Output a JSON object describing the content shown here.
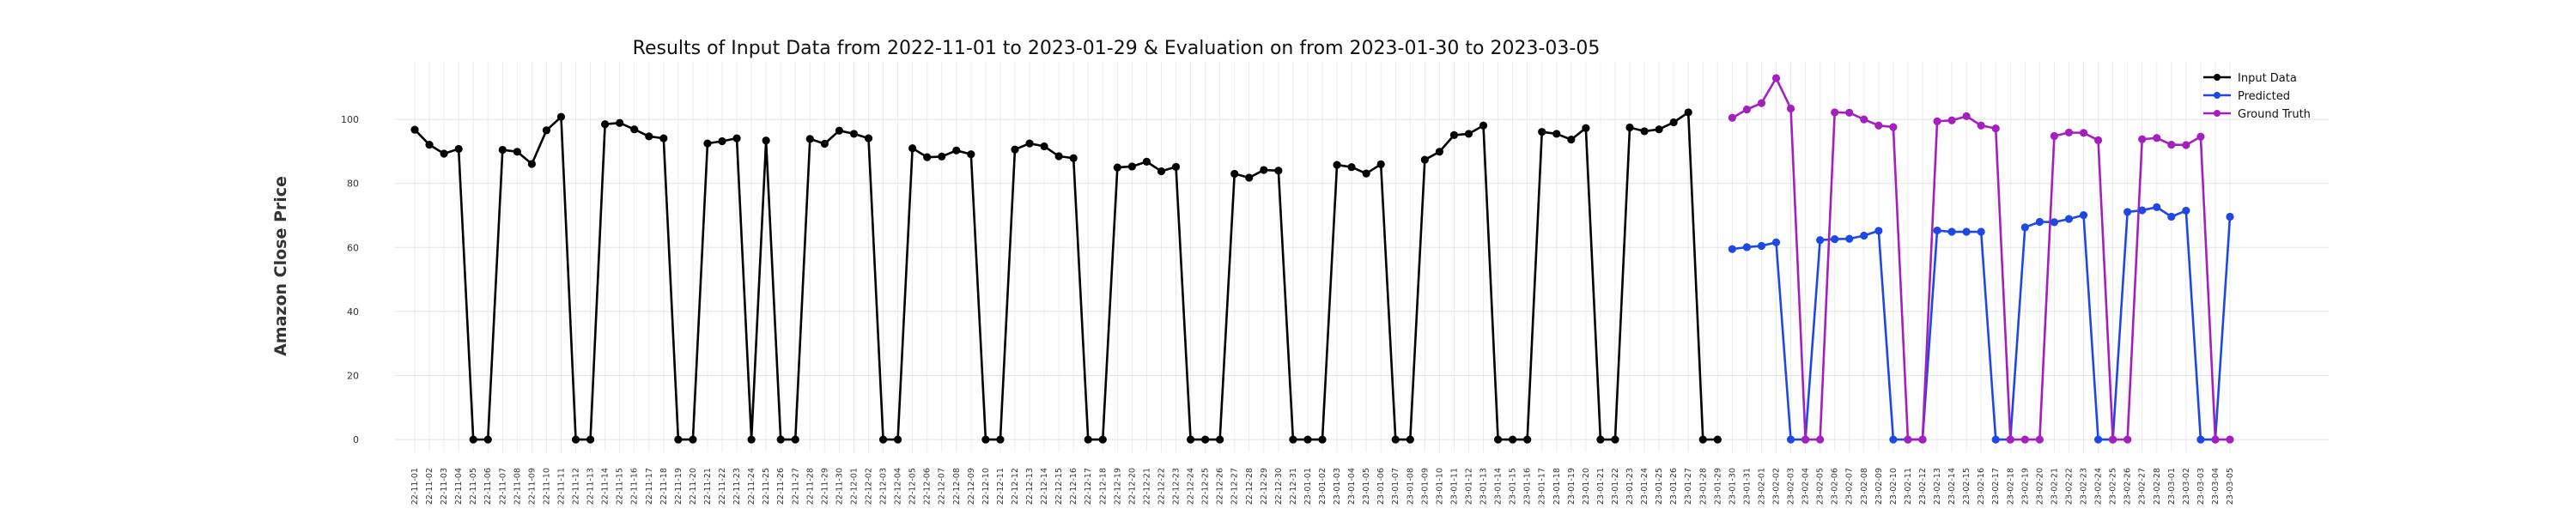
{
  "chart_data": {
    "type": "line",
    "title": "Results of Input Data from 2022-11-01 to 2023-01-29 & Evaluation on from 2023-01-30 to 2023-03-05",
    "xlabel": "",
    "ylabel": "Amazon Close Price",
    "ylim": [
      -4,
      118
    ],
    "yticks": [
      0,
      20,
      40,
      60,
      80,
      100
    ],
    "grid": true,
    "legend_position": "top-right",
    "x_input": [
      "2022-11-01",
      "2022-11-02",
      "2022-11-03",
      "2022-11-04",
      "2022-11-05",
      "2022-11-06",
      "2022-11-07",
      "2022-11-08",
      "2022-11-09",
      "2022-11-10",
      "2022-11-11",
      "2022-11-12",
      "2022-11-13",
      "2022-11-14",
      "2022-11-15",
      "2022-11-16",
      "2022-11-17",
      "2022-11-18",
      "2022-11-19",
      "2022-11-20",
      "2022-11-21",
      "2022-11-22",
      "2022-11-23",
      "2022-11-24",
      "2022-11-25",
      "2022-11-26",
      "2022-11-27",
      "2022-11-28",
      "2022-11-29",
      "2022-11-30",
      "2022-12-01",
      "2022-12-02",
      "2022-12-03",
      "2022-12-04",
      "2022-12-05",
      "2022-12-06",
      "2022-12-07",
      "2022-12-08",
      "2022-12-09",
      "2022-12-10",
      "2022-12-11",
      "2022-12-12",
      "2022-12-13",
      "2022-12-14",
      "2022-12-15",
      "2022-12-16",
      "2022-12-17",
      "2022-12-18",
      "2022-12-19",
      "2022-12-20",
      "2022-12-21",
      "2022-12-22",
      "2022-12-23",
      "2022-12-24",
      "2022-12-25",
      "2022-12-26",
      "2022-12-27",
      "2022-12-28",
      "2022-12-29",
      "2022-12-30",
      "2022-12-31",
      "2023-01-01",
      "2023-01-02",
      "2023-01-03",
      "2023-01-04",
      "2023-01-05",
      "2023-01-06",
      "2023-01-07",
      "2023-01-08",
      "2023-01-09",
      "2023-01-10",
      "2023-01-11",
      "2023-01-12",
      "2023-01-13",
      "2023-01-14",
      "2023-01-15",
      "2023-01-16",
      "2023-01-17",
      "2023-01-18",
      "2023-01-19",
      "2023-01-20",
      "2023-01-21",
      "2023-01-22",
      "2023-01-23",
      "2023-01-24",
      "2023-01-25",
      "2023-01-26",
      "2023-01-27",
      "2023-01-28",
      "2023-01-29"
    ],
    "x_eval": [
      "2023-01-30",
      "2023-01-31",
      "2023-02-01",
      "2023-02-02",
      "2023-02-03",
      "2023-02-04",
      "2023-02-05",
      "2023-02-06",
      "2023-02-07",
      "2023-02-08",
      "2023-02-09",
      "2023-02-10",
      "2023-02-11",
      "2023-02-12",
      "2023-02-13",
      "2023-02-14",
      "2023-02-15",
      "2023-02-16",
      "2023-02-17",
      "2023-02-18",
      "2023-02-19",
      "2023-02-20",
      "2023-02-21",
      "2023-02-22",
      "2023-02-23",
      "2023-02-24",
      "2023-02-25",
      "2023-02-26",
      "2023-02-27",
      "2023-02-28",
      "2023-03-01",
      "2023-03-02",
      "2023-03-03",
      "2023-03-04",
      "2023-03-05"
    ],
    "series": [
      {
        "name": "Input Data",
        "color": "#000000",
        "span": "input",
        "values": [
          96.8,
          92.1,
          89.3,
          90.8,
          0,
          0,
          90.5,
          89.9,
          86.1,
          96.6,
          100.8,
          0,
          0,
          98.5,
          98.9,
          96.9,
          94.7,
          94.1,
          0,
          0,
          92.5,
          93.2,
          94.1,
          0,
          93.4,
          0,
          0,
          93.9,
          92.4,
          96.5,
          95.5,
          94.1,
          0,
          0,
          91.0,
          88.2,
          88.4,
          90.3,
          89.1,
          0,
          0,
          90.6,
          92.5,
          91.6,
          88.5,
          87.9,
          0,
          0,
          85.0,
          85.3,
          86.8,
          83.8,
          85.2,
          0,
          0,
          0,
          83.0,
          81.8,
          84.2,
          84.0,
          0,
          0,
          0,
          85.8,
          85.1,
          83.1,
          86.0,
          0,
          0,
          87.4,
          89.9,
          95.1,
          95.5,
          98.1,
          0,
          0,
          0,
          96.1,
          95.5,
          93.7,
          97.3,
          0,
          0,
          97.5,
          96.3,
          96.9,
          99.1,
          102.2,
          0,
          0
        ]
      },
      {
        "name": "Predicted",
        "color": "#1f47e6",
        "span": "eval",
        "values": [
          59.5,
          60.1,
          60.5,
          61.6,
          0,
          0,
          62.3,
          62.6,
          62.7,
          63.7,
          65.2,
          0,
          0,
          0,
          65.3,
          64.9,
          64.9,
          64.9,
          0,
          0,
          66.3,
          68.0,
          67.9,
          68.9,
          70.1,
          0,
          0,
          71.1,
          71.6,
          72.6,
          69.6,
          71.5,
          0,
          0,
          69.6
        ]
      },
      {
        "name": "Ground Truth",
        "color": "#a51fbf",
        "span": "eval",
        "values": [
          100.5,
          103.1,
          105.1,
          112.9,
          103.4,
          0,
          0,
          102.2,
          102.1,
          100.0,
          98.1,
          97.6,
          0,
          0,
          99.4,
          99.7,
          101.0,
          98.1,
          97.2,
          0,
          0,
          0,
          94.8,
          95.9,
          95.8,
          93.5,
          0,
          0,
          93.8,
          94.2,
          92.1,
          92.0,
          94.6,
          0,
          0
        ]
      }
    ]
  }
}
